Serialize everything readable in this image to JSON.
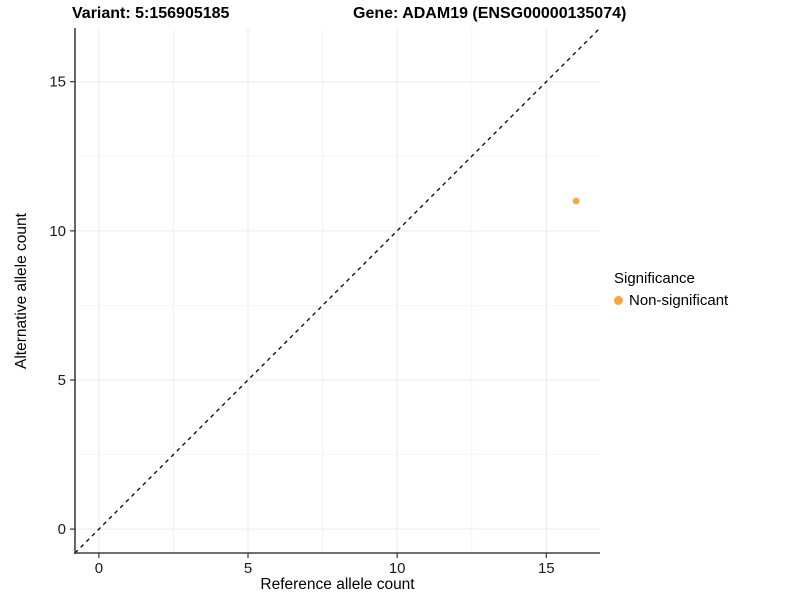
{
  "chart_data": {
    "type": "scatter",
    "title_left": "Variant: 5:156905185",
    "title_right": "Gene: ADAM19 (ENSG00000135074)",
    "xlabel": "Reference allele count",
    "ylabel": "Alternative allele count",
    "xlim": [
      -0.8,
      16.8
    ],
    "ylim": [
      -0.8,
      16.8
    ],
    "xticks": [
      0,
      5,
      10,
      15
    ],
    "yticks": [
      0,
      5,
      10,
      15
    ],
    "xticks_minor": [
      2.5,
      7.5,
      12.5
    ],
    "yticks_minor": [
      2.5,
      7.5,
      12.5
    ],
    "grid": true,
    "identity_line": {
      "style": "dashed",
      "from": -0.8,
      "to": 16.8,
      "color": "#000000"
    },
    "series": [
      {
        "name": "Non-significant",
        "color": "#FAA43C",
        "points": [
          {
            "x": 16,
            "y": 11
          }
        ]
      }
    ],
    "legend": {
      "title": "Significance",
      "position": "right",
      "entries": [
        {
          "label": "Non-significant",
          "color": "#FAA43C"
        }
      ]
    }
  },
  "colors": {
    "background": "#FFFFFF",
    "axis_line": "#404040",
    "tick_mark": "#333333",
    "grid_major": "#EDEDED",
    "grid_minor": "#F4F4F4",
    "point": "#FAA43C"
  }
}
